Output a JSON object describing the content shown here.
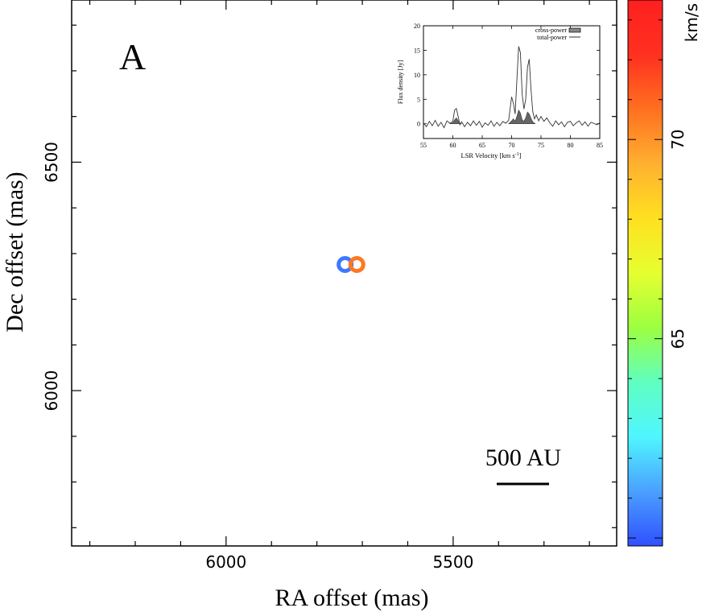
{
  "chart_data": [
    {
      "type": "scatter",
      "panel_label": "A",
      "xlabel": "RA offset (mas)",
      "ylabel": "Dec offset (mas)",
      "xlim": [
        6340,
        5140
      ],
      "ylim": [
        5660,
        6855
      ],
      "x_ticks": [
        6000,
        5500
      ],
      "x_tick_labels": [
        "6000",
        "5500"
      ],
      "y_ticks": [
        6000,
        6500
      ],
      "y_tick_labels": [
        "6000",
        "6500"
      ],
      "scale_bar": {
        "label": "500 AU",
        "length_mas": 115
      },
      "points": [
        {
          "x": 5738,
          "y": 6276,
          "velocity": 60.5
        },
        {
          "x": 5712,
          "y": 6276,
          "velocity": 70.6
        }
      ],
      "colorbar": {
        "label": "km/s",
        "range": [
          59.8,
          73.5
        ],
        "ticks": [
          65,
          70
        ],
        "tick_labels": [
          "65",
          "70"
        ],
        "colors": [
          "#3050ff",
          "#4aa0ff",
          "#4ff6ff",
          "#5fffc0",
          "#9cff40",
          "#e6ff30",
          "#ffe020",
          "#ffb030",
          "#ff7020",
          "#ff3020",
          "#ff2020"
        ]
      }
    },
    {
      "type": "line",
      "title": "",
      "xlabel": "LSR Velocity [km s",
      "xlabel_sup": "-1",
      "xlabel_end": "]",
      "ylabel": "Flux density [Jy]",
      "xlim": [
        55,
        85
      ],
      "ylim": [
        -3,
        20
      ],
      "x_ticks": [
        55,
        60,
        65,
        70,
        75,
        80,
        85
      ],
      "y_ticks": [
        0,
        5,
        10,
        15,
        20
      ],
      "legend": [
        "cross-power",
        "total-power"
      ],
      "series": [
        {
          "name": "total-power",
          "x": [
            55.0,
            55.5,
            56.0,
            56.5,
            57.0,
            57.5,
            58.0,
            58.5,
            59.0,
            59.5,
            60.0,
            60.3,
            60.6,
            60.9,
            61.2,
            61.5,
            62.0,
            62.5,
            63.0,
            63.5,
            64.0,
            64.5,
            65.0,
            65.5,
            66.0,
            66.5,
            67.0,
            67.5,
            68.0,
            68.5,
            69.0,
            69.5,
            70.0,
            70.3,
            70.6,
            70.9,
            71.2,
            71.5,
            71.8,
            72.1,
            72.4,
            72.7,
            73.0,
            73.3,
            73.6,
            73.9,
            74.2,
            74.6,
            75.0,
            75.5,
            76.0,
            76.5,
            77.0,
            77.5,
            78.0,
            78.5,
            79.0,
            79.5,
            80.0,
            80.5,
            81.0,
            81.5,
            82.0,
            82.5,
            83.0,
            83.5,
            84.0,
            84.5,
            85.0
          ],
          "values": [
            0.2,
            -0.6,
            0.5,
            -0.4,
            0.7,
            -0.5,
            0.3,
            -0.8,
            0.6,
            0.1,
            0.5,
            2.8,
            3.1,
            1.5,
            -0.2,
            0.4,
            -0.6,
            0.3,
            -0.4,
            0.6,
            -0.3,
            0.5,
            -0.7,
            0.2,
            -0.3,
            0.6,
            -0.5,
            0.3,
            -0.4,
            0.5,
            0.1,
            0.7,
            5.5,
            4.2,
            2.0,
            9.0,
            15.8,
            14.5,
            6.0,
            3.0,
            5.0,
            11.5,
            13.2,
            7.0,
            2.5,
            1.0,
            1.8,
            0.6,
            1.5,
            0.5,
            1.2,
            0.2,
            -0.5,
            0.6,
            -0.2,
            0.4,
            -0.6,
            0.3,
            0.5,
            -0.4,
            0.2,
            0.6,
            -0.3,
            0.4,
            -0.5,
            0.3,
            0.1,
            -0.2,
            0.2
          ]
        },
        {
          "name": "cross-power",
          "x": [
            59.5,
            60.0,
            60.3,
            60.6,
            60.9,
            61.2,
            61.5,
            69.5,
            70.0,
            70.3,
            70.6,
            70.9,
            71.2,
            71.5,
            71.8,
            72.1,
            72.4,
            72.7,
            73.0,
            73.3,
            73.6,
            74.0
          ],
          "values": [
            0.0,
            0.2,
            0.8,
            1.2,
            0.6,
            0.1,
            0.0,
            0.0,
            0.6,
            1.0,
            0.5,
            1.5,
            2.8,
            2.2,
            0.8,
            0.5,
            1.2,
            2.4,
            2.0,
            1.1,
            0.4,
            0.0
          ]
        }
      ]
    }
  ]
}
